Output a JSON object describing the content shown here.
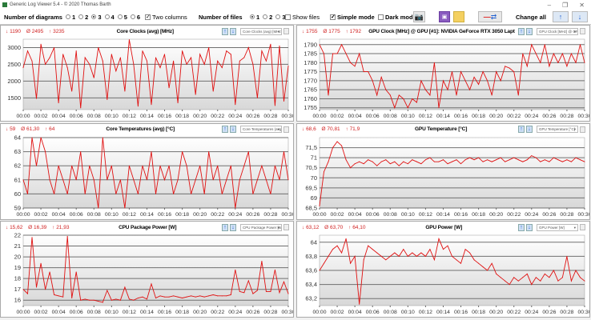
{
  "window": {
    "title": "Generic Log Viewer 5.4 - © 2020 Thomas Barth",
    "minimize": "–",
    "maximize": "❐",
    "close": "✕"
  },
  "toolbar": {
    "diagrams_label": "Number of diagrams",
    "diagram_options": [
      "1",
      "2",
      "3",
      "4",
      "5",
      "6"
    ],
    "diagrams_selected": "3",
    "two_columns": {
      "label": "Two columns",
      "checked": true
    },
    "files_label": "Number of files",
    "file_options": [
      "1",
      "2",
      "3"
    ],
    "files_selected": "1",
    "show_files": {
      "label": "Show files",
      "checked": false
    },
    "simple_mode": {
      "label": "Simple mode",
      "checked": true
    },
    "dark_mode": {
      "label": "Dark mod",
      "checked": false
    },
    "change_all_label": "Change all"
  },
  "colors": {
    "line": "#e01010",
    "stats": "#d02020",
    "grid": "#707070",
    "accent": "#2060d0"
  },
  "chart_data": [
    {
      "type": "line",
      "title": "Core Clocks (avg) [MHz]",
      "selector": "Core Clocks (avg) [MHz]",
      "min": "1190",
      "avg": "2495",
      "max": "3235",
      "ylim": [
        1150,
        3250
      ],
      "yticks": [
        1500,
        2000,
        2500,
        3000
      ],
      "ytick_labels": [
        "1500",
        "2000",
        "2500",
        "3000"
      ],
      "xtick_labels": [
        "00:00",
        "00:02",
        "00:04",
        "00:06",
        "00:08",
        "00:10",
        "00:12",
        "00:14",
        "00:16",
        "00:18",
        "00:20",
        "00:22",
        "00:24",
        "00:26",
        "00:28",
        "00:30"
      ],
      "xlim": [
        0,
        30
      ],
      "values": [
        2400,
        2900,
        2600,
        1480,
        3100,
        2500,
        2700,
        3000,
        1350,
        2800,
        2400,
        1700,
        2900,
        1200,
        2700,
        2500,
        2100,
        3000,
        2600,
        1450,
        2800,
        2300,
        2700,
        1700,
        3235,
        2500,
        1250,
        2900,
        2600,
        1300,
        2700,
        2400,
        2800,
        1800,
        2600,
        1350,
        2900,
        2500,
        2700,
        1600,
        2800,
        2500,
        3000,
        1700,
        2600,
        2400,
        2900,
        2800,
        1300,
        2600,
        2700,
        3000,
        2500,
        1500,
        2900,
        2600,
        3100,
        1270,
        3050,
        1400,
        2450
      ]
    },
    {
      "type": "line",
      "title": "GPU Clock [MHz] @ GPU [#1]: NVIDIA GeForce RTX 3050 Lapt",
      "selector": "GPU Clock [MHz] @ GPU",
      "min": "1755",
      "avg": "1775",
      "max": "1792",
      "ylim": [
        1754,
        1793
      ],
      "yticks": [
        1755,
        1760,
        1765,
        1770,
        1775,
        1780,
        1785,
        1790
      ],
      "ytick_labels": [
        "1755",
        "1760",
        "1765",
        "1770",
        "1775",
        "1780",
        "1785",
        "1790"
      ],
      "xtick_labels": [
        "00:00",
        "00:02",
        "00:04",
        "00:06",
        "00:08",
        "00:10",
        "00:12",
        "00:14",
        "00:16",
        "00:18",
        "00:20",
        "00:22",
        "00:24",
        "00:26",
        "00:28",
        "00:30"
      ],
      "xlim": [
        0,
        30
      ],
      "values": [
        1790,
        1785,
        1762,
        1785,
        1785,
        1790,
        1785,
        1780,
        1778,
        1785,
        1775,
        1775,
        1770,
        1762,
        1772,
        1765,
        1762,
        1755,
        1762,
        1760,
        1755,
        1760,
        1758,
        1770,
        1765,
        1762,
        1780,
        1755,
        1770,
        1765,
        1775,
        1762,
        1775,
        1770,
        1765,
        1772,
        1768,
        1775,
        1770,
        1762,
        1775,
        1770,
        1778,
        1777,
        1775,
        1762,
        1785,
        1778,
        1790,
        1785,
        1780,
        1790,
        1778,
        1785,
        1780,
        1785,
        1778,
        1785,
        1780,
        1790,
        1780
      ]
    },
    {
      "type": "line",
      "title": "Core Temperatures (avg) [°C]",
      "selector": "Core Temperatures (avg)",
      "min": "59",
      "avg": "61,30",
      "max": "64",
      "ylim": [
        59,
        64
      ],
      "yticks": [
        59,
        60,
        61,
        62,
        63,
        64
      ],
      "ytick_labels": [
        "59",
        "60",
        "61",
        "62",
        "63",
        "64"
      ],
      "xtick_labels": [
        "00:00",
        "00:02",
        "00:04",
        "00:06",
        "00:08",
        "00:10",
        "00:12",
        "00:14",
        "00:16",
        "00:18",
        "00:20",
        "00:22",
        "00:24",
        "00:26",
        "00:28",
        "00:30"
      ],
      "xlim": [
        0,
        30
      ],
      "values": [
        61,
        60,
        64,
        62,
        64,
        63,
        61,
        60,
        62,
        61,
        60,
        62,
        61,
        63,
        60,
        62,
        61,
        59,
        64,
        61,
        62,
        60,
        61,
        59,
        62,
        61,
        60,
        62,
        61,
        63,
        60,
        62,
        61,
        62,
        60,
        61,
        63,
        62,
        60,
        61,
        62,
        60,
        63,
        61,
        62,
        60,
        61,
        62,
        59,
        61,
        62,
        63,
        60,
        61,
        62,
        61,
        60,
        62,
        61,
        63,
        61
      ]
    },
    {
      "type": "line",
      "title": "GPU Temperature [°C]",
      "selector": "GPU Temperature [°C]",
      "min": "68,6",
      "avg": "70,81",
      "max": "71,9",
      "ylim": [
        68.5,
        72
      ],
      "yticks": [
        68.5,
        69,
        69.5,
        70,
        70.5,
        71,
        71.5
      ],
      "ytick_labels": [
        "68,5",
        "69",
        "69,5",
        "70",
        "70,5",
        "71",
        "71,5"
      ],
      "xtick_labels": [
        "00:00",
        "00:02",
        "00:04",
        "00:06",
        "00:08",
        "00:10",
        "00:12",
        "00:14",
        "00:16",
        "00:18",
        "00:20",
        "00:22",
        "00:24",
        "00:26",
        "00:28",
        "00:30"
      ],
      "xlim": [
        0,
        30
      ],
      "values": [
        68.6,
        70.3,
        70.8,
        71.5,
        71.8,
        71.6,
        70.9,
        70.5,
        70.7,
        70.8,
        70.7,
        70.9,
        70.8,
        70.6,
        70.8,
        70.9,
        70.7,
        70.8,
        70.6,
        70.8,
        70.7,
        70.9,
        70.8,
        70.7,
        70.9,
        71.0,
        70.8,
        70.8,
        70.9,
        70.7,
        70.8,
        70.9,
        70.7,
        70.9,
        71.0,
        70.9,
        71.0,
        70.8,
        70.9,
        70.8,
        70.9,
        71.0,
        70.8,
        70.9,
        71.0,
        70.9,
        70.8,
        70.9,
        71.1,
        71.0,
        70.8,
        70.9,
        70.8,
        71.0,
        70.9,
        70.8,
        70.9,
        70.8,
        71.0,
        70.9,
        70.8
      ]
    },
    {
      "type": "line",
      "title": "CPU Package Power [W]",
      "selector": "CPU Package Power [W]",
      "min": "15,62",
      "avg": "16,39",
      "max": "21,93",
      "ylim": [
        15.5,
        22
      ],
      "yticks": [
        16,
        17,
        18,
        19,
        20,
        21,
        22
      ],
      "ytick_labels": [
        "16",
        "17",
        "18",
        "19",
        "20",
        "21",
        "22"
      ],
      "xtick_labels": [
        "00:00",
        "00:02",
        "00:04",
        "00:06",
        "00:08",
        "00:10",
        "00:12",
        "00:14",
        "00:16",
        "00:18",
        "00:20",
        "00:22",
        "00:24",
        "00:26",
        "00:28",
        "00:30"
      ],
      "xlim": [
        0,
        30
      ],
      "values": [
        17.0,
        16.6,
        21.8,
        17.2,
        19.4,
        17.0,
        18.6,
        16.5,
        16.4,
        16.3,
        21.9,
        16.2,
        18.6,
        16.0,
        16.1,
        16.0,
        16.0,
        15.9,
        15.8,
        16.9,
        16.0,
        16.1,
        16.0,
        17.2,
        16.1,
        16.0,
        16.2,
        16.3,
        16.1,
        17.5,
        16.2,
        16.4,
        16.3,
        16.3,
        16.4,
        16.3,
        16.2,
        16.3,
        16.4,
        16.3,
        16.4,
        16.3,
        16.4,
        16.5,
        16.4,
        16.4,
        16.4,
        16.5,
        18.8,
        16.8,
        16.7,
        17.8,
        16.6,
        16.9,
        19.6,
        16.8,
        16.8,
        18.8,
        16.7,
        17.7,
        16.6
      ]
    },
    {
      "type": "line",
      "title": "GPU Power [W]",
      "selector": "GPU Power [W]",
      "min": "63,12",
      "avg": "63,70",
      "max": "64,10",
      "ylim": [
        63.1,
        64.1
      ],
      "yticks": [
        63.2,
        63.4,
        63.6,
        63.8,
        64
      ],
      "ytick_labels": [
        "63,2",
        "63,4",
        "63,6",
        "63,8",
        "64"
      ],
      "xtick_labels": [
        "00:00",
        "00:02",
        "00:04",
        "00:06",
        "00:08",
        "00:10",
        "00:12",
        "00:14",
        "00:16",
        "00:18",
        "00:20",
        "00:22",
        "00:24",
        "00:26",
        "00:28",
        "00:30"
      ],
      "xlim": [
        0,
        30
      ],
      "values": [
        63.6,
        63.7,
        63.8,
        63.9,
        63.95,
        63.85,
        64.05,
        63.7,
        63.8,
        63.12,
        63.75,
        63.95,
        63.9,
        63.85,
        63.8,
        63.75,
        63.8,
        63.85,
        63.8,
        63.9,
        63.8,
        63.85,
        63.8,
        63.85,
        63.8,
        63.9,
        63.75,
        64.05,
        63.9,
        63.95,
        63.8,
        63.75,
        63.7,
        63.9,
        63.85,
        63.75,
        63.7,
        63.65,
        63.6,
        63.7,
        63.55,
        63.5,
        63.45,
        63.4,
        63.5,
        63.45,
        63.5,
        63.55,
        63.4,
        63.5,
        63.45,
        63.55,
        63.5,
        63.6,
        63.45,
        63.5,
        63.8,
        63.45,
        63.6,
        63.5,
        63.45
      ]
    }
  ]
}
